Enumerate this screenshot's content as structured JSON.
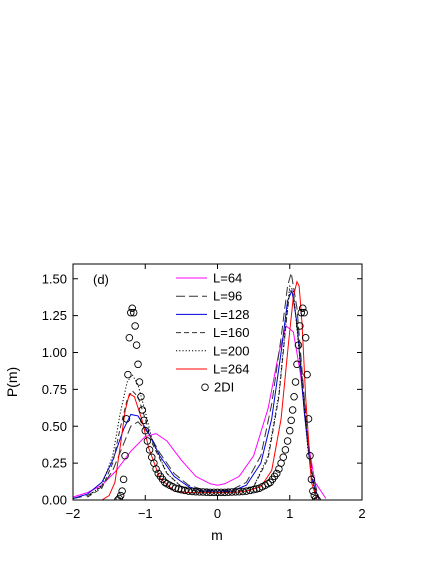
{
  "chart_data": {
    "type": "line",
    "title": "",
    "panel_label": "(d)",
    "xlabel": "m",
    "ylabel": "P(m)",
    "xlim": [
      -2,
      2
    ],
    "ylim": [
      0,
      1.6
    ],
    "xticks": [
      -2,
      -1,
      0,
      1,
      2
    ],
    "xtick_labels": [
      "−2",
      "−1",
      "0",
      "1",
      "2"
    ],
    "yticks": [
      0,
      0.25,
      0.5,
      0.75,
      1.0,
      1.25,
      1.5
    ],
    "ytick_labels": [
      "0.00",
      "0.25",
      "0.50",
      "0.75",
      "1.00",
      "1.25",
      "1.50"
    ],
    "grid": false,
    "legend_position": "top-center",
    "series": [
      {
        "name": "L=64",
        "color": "#ff00ff",
        "dash": "solid",
        "marker": "none",
        "x": [
          -2.0,
          -1.8,
          -1.6,
          -1.4,
          -1.2,
          -1.0,
          -0.85,
          -0.7,
          -0.5,
          -0.3,
          -0.1,
          0.0,
          0.1,
          0.3,
          0.5,
          0.7,
          0.85,
          0.95,
          1.05,
          1.15,
          1.25,
          1.35,
          1.5
        ],
        "y": [
          0.02,
          0.05,
          0.1,
          0.2,
          0.33,
          0.43,
          0.45,
          0.4,
          0.27,
          0.16,
          0.11,
          0.1,
          0.11,
          0.16,
          0.3,
          0.62,
          1.0,
          1.18,
          1.14,
          0.85,
          0.4,
          0.12,
          0.01
        ]
      },
      {
        "name": "L=96",
        "color": "#333333",
        "dash": "long-dash",
        "marker": "none",
        "x": [
          -2.0,
          -1.8,
          -1.6,
          -1.45,
          -1.3,
          -1.2,
          -1.1,
          -0.95,
          -0.8,
          -0.6,
          -0.4,
          -0.2,
          0.0,
          0.2,
          0.4,
          0.6,
          0.75,
          0.88,
          0.97,
          1.02,
          1.1,
          1.2,
          1.3,
          1.4
        ],
        "y": [
          0.01,
          0.03,
          0.09,
          0.2,
          0.38,
          0.5,
          0.53,
          0.45,
          0.32,
          0.18,
          0.1,
          0.07,
          0.06,
          0.07,
          0.12,
          0.3,
          0.65,
          1.1,
          1.45,
          1.54,
          1.3,
          0.7,
          0.2,
          0.02
        ]
      },
      {
        "name": "L=128",
        "color": "#0000dd",
        "dash": "solid",
        "marker": "none",
        "x": [
          -2.0,
          -1.8,
          -1.6,
          -1.45,
          -1.3,
          -1.2,
          -1.1,
          -0.95,
          -0.8,
          -0.6,
          -0.4,
          -0.2,
          0.0,
          0.2,
          0.4,
          0.6,
          0.75,
          0.88,
          0.97,
          1.03,
          1.1,
          1.2,
          1.3,
          1.4
        ],
        "y": [
          0.01,
          0.04,
          0.12,
          0.27,
          0.48,
          0.58,
          0.57,
          0.45,
          0.3,
          0.16,
          0.09,
          0.06,
          0.06,
          0.06,
          0.1,
          0.25,
          0.55,
          1.0,
          1.35,
          1.42,
          1.2,
          0.6,
          0.15,
          0.01
        ]
      },
      {
        "name": "L=160",
        "color": "#333333",
        "dash": "dash",
        "marker": "none",
        "x": [
          -1.8,
          -1.6,
          -1.45,
          -1.35,
          -1.25,
          -1.18,
          -1.1,
          -1.0,
          -0.9,
          -0.7,
          -0.5,
          -0.3,
          0.0,
          0.3,
          0.5,
          0.7,
          0.85,
          0.95,
          1.0,
          1.05,
          1.15,
          1.25,
          1.35
        ],
        "y": [
          0.02,
          0.08,
          0.25,
          0.48,
          0.68,
          0.74,
          0.7,
          0.55,
          0.38,
          0.18,
          0.09,
          0.06,
          0.05,
          0.06,
          0.09,
          0.28,
          0.7,
          1.2,
          1.42,
          1.4,
          0.95,
          0.4,
          0.05
        ]
      },
      {
        "name": "L=200",
        "color": "#000000",
        "dash": "dot",
        "marker": "none",
        "x": [
          -1.8,
          -1.6,
          -1.45,
          -1.35,
          -1.25,
          -1.18,
          -1.1,
          -1.0,
          -0.9,
          -0.7,
          -0.5,
          -0.3,
          0.0,
          0.3,
          0.5,
          0.7,
          0.85,
          0.95,
          1.0,
          1.05,
          1.15,
          1.25,
          1.35
        ],
        "y": [
          0.02,
          0.1,
          0.3,
          0.58,
          0.8,
          0.85,
          0.78,
          0.6,
          0.4,
          0.18,
          0.09,
          0.06,
          0.05,
          0.06,
          0.09,
          0.3,
          0.72,
          1.22,
          1.45,
          1.42,
          0.9,
          0.35,
          0.04
        ]
      },
      {
        "name": "L=264",
        "color": "#ff0000",
        "dash": "solid",
        "marker": "none",
        "x": [
          -1.6,
          -1.5,
          -1.42,
          -1.35,
          -1.28,
          -1.22,
          -1.15,
          -1.05,
          -0.95,
          -0.8,
          -0.6,
          -0.4,
          -0.2,
          0.0,
          0.2,
          0.4,
          0.6,
          0.75,
          0.88,
          0.98,
          1.05,
          1.1,
          1.13,
          1.17,
          1.22,
          1.3,
          1.38
        ],
        "y": [
          0.0,
          0.03,
          0.12,
          0.35,
          0.6,
          0.72,
          0.7,
          0.55,
          0.35,
          0.15,
          0.06,
          0.05,
          0.05,
          0.05,
          0.05,
          0.06,
          0.09,
          0.2,
          0.55,
          1.05,
          1.38,
          1.48,
          1.45,
          1.2,
          0.7,
          0.12,
          0.0
        ]
      },
      {
        "name": "2DI",
        "color": "#000000",
        "dash": "none",
        "marker": "circle",
        "x": [
          -1.38,
          -1.36,
          -1.34,
          -1.32,
          -1.3,
          -1.28,
          -1.26,
          -1.24,
          -1.22,
          -1.2,
          -1.18,
          -1.16,
          -1.14,
          -1.12,
          -1.1,
          -1.08,
          -1.06,
          -1.04,
          -1.02,
          -1.0,
          -0.97,
          -0.94,
          -0.91,
          -0.88,
          -0.85,
          -0.82,
          -0.79,
          -0.76,
          -0.73,
          -0.7,
          -0.66,
          -0.62,
          -0.58,
          -0.54,
          -0.5,
          -0.45,
          -0.4,
          -0.35,
          -0.3,
          -0.25,
          -0.2,
          -0.15,
          -0.1,
          -0.05,
          0.0,
          0.05,
          0.1,
          0.15,
          0.2,
          0.25,
          0.3,
          0.35,
          0.4,
          0.45,
          0.5,
          0.54,
          0.58,
          0.62,
          0.66,
          0.7,
          0.73,
          0.76,
          0.79,
          0.82,
          0.85,
          0.88,
          0.91,
          0.94,
          0.97,
          1.0,
          1.02,
          1.04,
          1.06,
          1.08,
          1.1,
          1.12,
          1.14,
          1.16,
          1.18,
          1.2,
          1.22,
          1.24,
          1.26,
          1.28,
          1.3,
          1.32,
          1.34,
          1.36,
          1.38
        ],
        "y": [
          0.0,
          0.01,
          0.03,
          0.06,
          0.14,
          0.3,
          0.55,
          0.85,
          1.1,
          1.27,
          1.3,
          1.27,
          1.18,
          1.05,
          0.92,
          0.8,
          0.7,
          0.61,
          0.54,
          0.47,
          0.4,
          0.34,
          0.29,
          0.25,
          0.21,
          0.18,
          0.16,
          0.14,
          0.12,
          0.11,
          0.1,
          0.09,
          0.08,
          0.075,
          0.07,
          0.065,
          0.06,
          0.058,
          0.056,
          0.055,
          0.054,
          0.053,
          0.052,
          0.052,
          0.052,
          0.052,
          0.052,
          0.053,
          0.054,
          0.055,
          0.056,
          0.058,
          0.06,
          0.065,
          0.07,
          0.075,
          0.08,
          0.09,
          0.1,
          0.11,
          0.12,
          0.14,
          0.16,
          0.18,
          0.21,
          0.25,
          0.29,
          0.34,
          0.4,
          0.47,
          0.54,
          0.61,
          0.7,
          0.8,
          0.92,
          1.05,
          1.18,
          1.27,
          1.3,
          1.27,
          1.1,
          0.85,
          0.55,
          0.3,
          0.14,
          0.06,
          0.03,
          0.01,
          0.0
        ]
      }
    ]
  }
}
